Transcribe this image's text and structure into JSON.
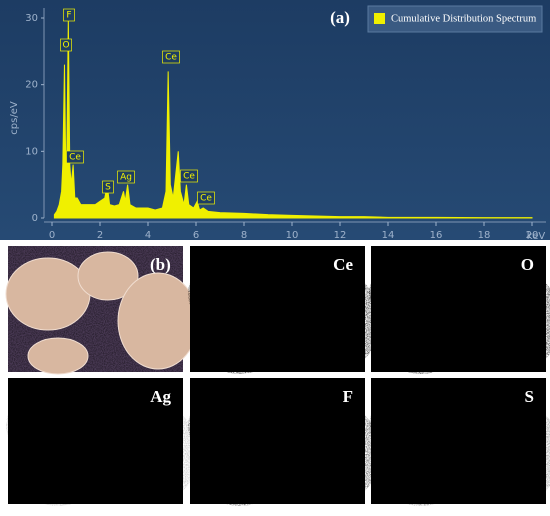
{
  "chart_data": {
    "type": "area",
    "panel_label": "(a)",
    "x": [
      0.1,
      0.2,
      0.3,
      0.4,
      0.45,
      0.52,
      0.58,
      0.62,
      0.68,
      0.74,
      0.8,
      0.88,
      0.95,
      1.05,
      1.2,
      1.5,
      1.8,
      2.0,
      2.2,
      2.3,
      2.4,
      2.6,
      2.8,
      2.98,
      3.05,
      3.15,
      3.25,
      3.5,
      3.8,
      4.0,
      4.3,
      4.6,
      4.75,
      4.84,
      4.93,
      5.05,
      5.26,
      5.35,
      5.5,
      5.6,
      5.7,
      5.9,
      6.05,
      6.15,
      6.3,
      6.5,
      7,
      8,
      9,
      10,
      11,
      12,
      13,
      14,
      16,
      18,
      20
    ],
    "series": [
      {
        "name": "Cumulative Distribution Spectrum",
        "color": "#f0f000",
        "values": [
          0.5,
          1,
          2,
          4,
          8,
          23,
          6,
          10,
          30,
          8,
          5,
          8,
          3,
          3,
          2,
          2,
          2,
          2.5,
          3,
          5,
          2,
          1.8,
          2,
          4,
          2.5,
          5,
          2,
          1.5,
          1.5,
          1.5,
          1.2,
          1.5,
          4,
          22,
          5,
          3,
          10,
          4,
          2,
          5,
          2,
          1.5,
          2.5,
          1.2,
          1.5,
          1,
          0.8,
          0.7,
          0.5,
          0.4,
          0.3,
          0.2,
          0.2,
          0.1,
          0.1,
          0.05,
          0.05
        ]
      }
    ],
    "xlabel": "keV",
    "ylabel": "cps/eV",
    "xlim": [
      0,
      20
    ],
    "ylim": [
      0,
      30
    ],
    "xticks": [
      0,
      2,
      4,
      6,
      8,
      10,
      12,
      14,
      16,
      18,
      20
    ],
    "yticks": [
      0,
      10,
      20,
      30
    ],
    "annotations": [
      "O",
      "F",
      "Ce",
      "S",
      "Ag",
      "Ce",
      "Ce",
      "Ce"
    ]
  },
  "maps": {
    "panel_label": "(b)",
    "elements": [
      "Ce",
      "O",
      "Ag",
      "F",
      "S"
    ]
  }
}
